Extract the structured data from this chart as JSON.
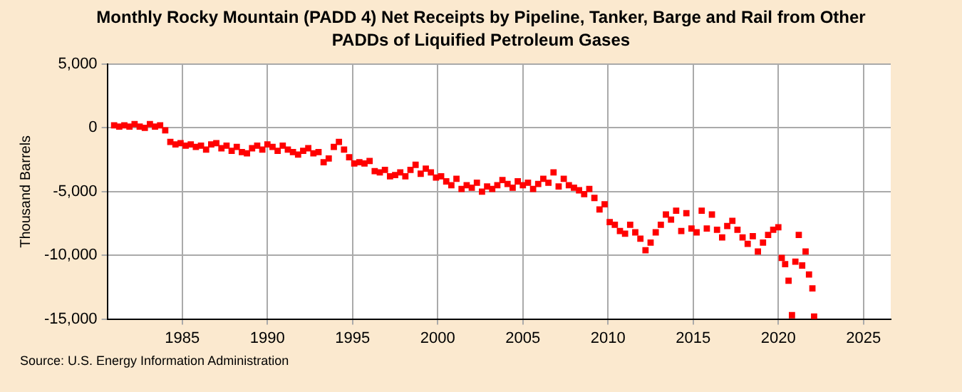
{
  "chart_data": {
    "type": "scatter",
    "title": "Monthly Rocky Mountain (PADD 4) Net Receipts by Pipeline, Tanker, Barge and Rail from Other PADDs of Liquified Petroleum Gases",
    "ylabel": "Thousand Barrels",
    "annotations": [
      "Source: U.S. Energy Information Administration"
    ],
    "xlim": [
      1980.6,
      2026.6
    ],
    "xticks": [
      1985,
      1990,
      1995,
      2000,
      2005,
      2010,
      2015,
      2020,
      2025
    ],
    "ylim": [
      -15000,
      5000
    ],
    "yticks": [
      {
        "value": 5000,
        "label": "5,000"
      },
      {
        "value": 0,
        "label": "0"
      },
      {
        "value": -5000,
        "label": "-5,000"
      },
      {
        "value": -10000,
        "label": "-10,000"
      },
      {
        "value": -15000,
        "label": "-15,000"
      }
    ],
    "grid": true,
    "legend": false,
    "marker": "square",
    "series": [
      {
        "color": "#ff0000",
        "x": [
          1981.0,
          1981.3,
          1981.6,
          1981.9,
          1982.2,
          1982.5,
          1982.8,
          1983.1,
          1983.4,
          1983.7,
          1984.0,
          1984.3,
          1984.6,
          1984.9,
          1985.2,
          1985.5,
          1985.8,
          1986.1,
          1986.4,
          1986.7,
          1987.0,
          1987.3,
          1987.6,
          1987.9,
          1988.2,
          1988.5,
          1988.8,
          1989.1,
          1989.4,
          1989.7,
          1990.0,
          1990.3,
          1990.6,
          1990.9,
          1991.2,
          1991.5,
          1991.8,
          1992.1,
          1992.4,
          1992.7,
          1993.0,
          1993.3,
          1993.6,
          1993.9,
          1994.2,
          1994.5,
          1994.8,
          1995.1,
          1995.4,
          1995.7,
          1996.0,
          1996.3,
          1996.6,
          1996.9,
          1997.2,
          1997.5,
          1997.8,
          1998.1,
          1998.4,
          1998.7,
          1999.0,
          1999.3,
          1999.6,
          1999.9,
          2000.2,
          2000.5,
          2000.8,
          2001.1,
          2001.4,
          2001.7,
          2002.0,
          2002.3,
          2002.6,
          2002.9,
          2003.2,
          2003.5,
          2003.8,
          2004.1,
          2004.4,
          2004.7,
          2005.0,
          2005.3,
          2005.6,
          2005.9,
          2006.2,
          2006.5,
          2006.8,
          2007.1,
          2007.4,
          2007.7,
          2008.0,
          2008.3,
          2008.6,
          2008.9,
          2009.2,
          2009.5,
          2009.8,
          2010.1,
          2010.4,
          2010.7,
          2011.0,
          2011.3,
          2011.6,
          2011.9,
          2012.2,
          2012.5,
          2012.8,
          2013.1,
          2013.4,
          2013.7,
          2014.0,
          2014.3,
          2014.6,
          2014.9,
          2015.2,
          2015.5,
          2015.8,
          2016.1,
          2016.4,
          2016.7,
          2017.0,
          2017.3,
          2017.6,
          2017.9,
          2018.2,
          2018.5,
          2018.8,
          2019.1,
          2019.4,
          2019.7,
          2020.0,
          2020.2,
          2020.4,
          2020.6,
          2020.8,
          2021.0,
          2021.2,
          2021.4,
          2021.6,
          2021.8,
          2022.0,
          2022.1
        ],
        "values": [
          200,
          100,
          200,
          100,
          300,
          100,
          0,
          300,
          100,
          200,
          -200,
          -1100,
          -1300,
          -1200,
          -1400,
          -1300,
          -1500,
          -1400,
          -1700,
          -1300,
          -1200,
          -1600,
          -1400,
          -1800,
          -1500,
          -1900,
          -2000,
          -1600,
          -1400,
          -1700,
          -1300,
          -1500,
          -1800,
          -1400,
          -1700,
          -1900,
          -2100,
          -1800,
          -1600,
          -2000,
          -1900,
          -2700,
          -2400,
          -1500,
          -1100,
          -1700,
          -2300,
          -2800,
          -2700,
          -2800,
          -2600,
          -3400,
          -3500,
          -3300,
          -3800,
          -3700,
          -3500,
          -3800,
          -3300,
          -2900,
          -3600,
          -3200,
          -3500,
          -3900,
          -3800,
          -4200,
          -4500,
          -4000,
          -4800,
          -4500,
          -4700,
          -4300,
          -5000,
          -4600,
          -4800,
          -4500,
          -4100,
          -4400,
          -4700,
          -4200,
          -4500,
          -4300,
          -4800,
          -4400,
          -4000,
          -4300,
          -3500,
          -4600,
          -4000,
          -4500,
          -4700,
          -4900,
          -5200,
          -4800,
          -5500,
          -6400,
          -6000,
          -7400,
          -7600,
          -8100,
          -8300,
          -7600,
          -8200,
          -8700,
          -9600,
          -9000,
          -8200,
          -7600,
          -6800,
          -7200,
          -6500,
          -8100,
          -6700,
          -7900,
          -8200,
          -6500,
          -7900,
          -6800,
          -8000,
          -8600,
          -7700,
          -7300,
          -8000,
          -8600,
          -9100,
          -8500,
          -9700,
          -9000,
          -8400,
          -8000,
          -7800,
          -10200,
          -10700,
          -12000,
          -14700,
          -10500,
          -8400,
          -10800,
          -9700,
          -11500,
          -12600,
          -14800
        ]
      }
    ]
  }
}
